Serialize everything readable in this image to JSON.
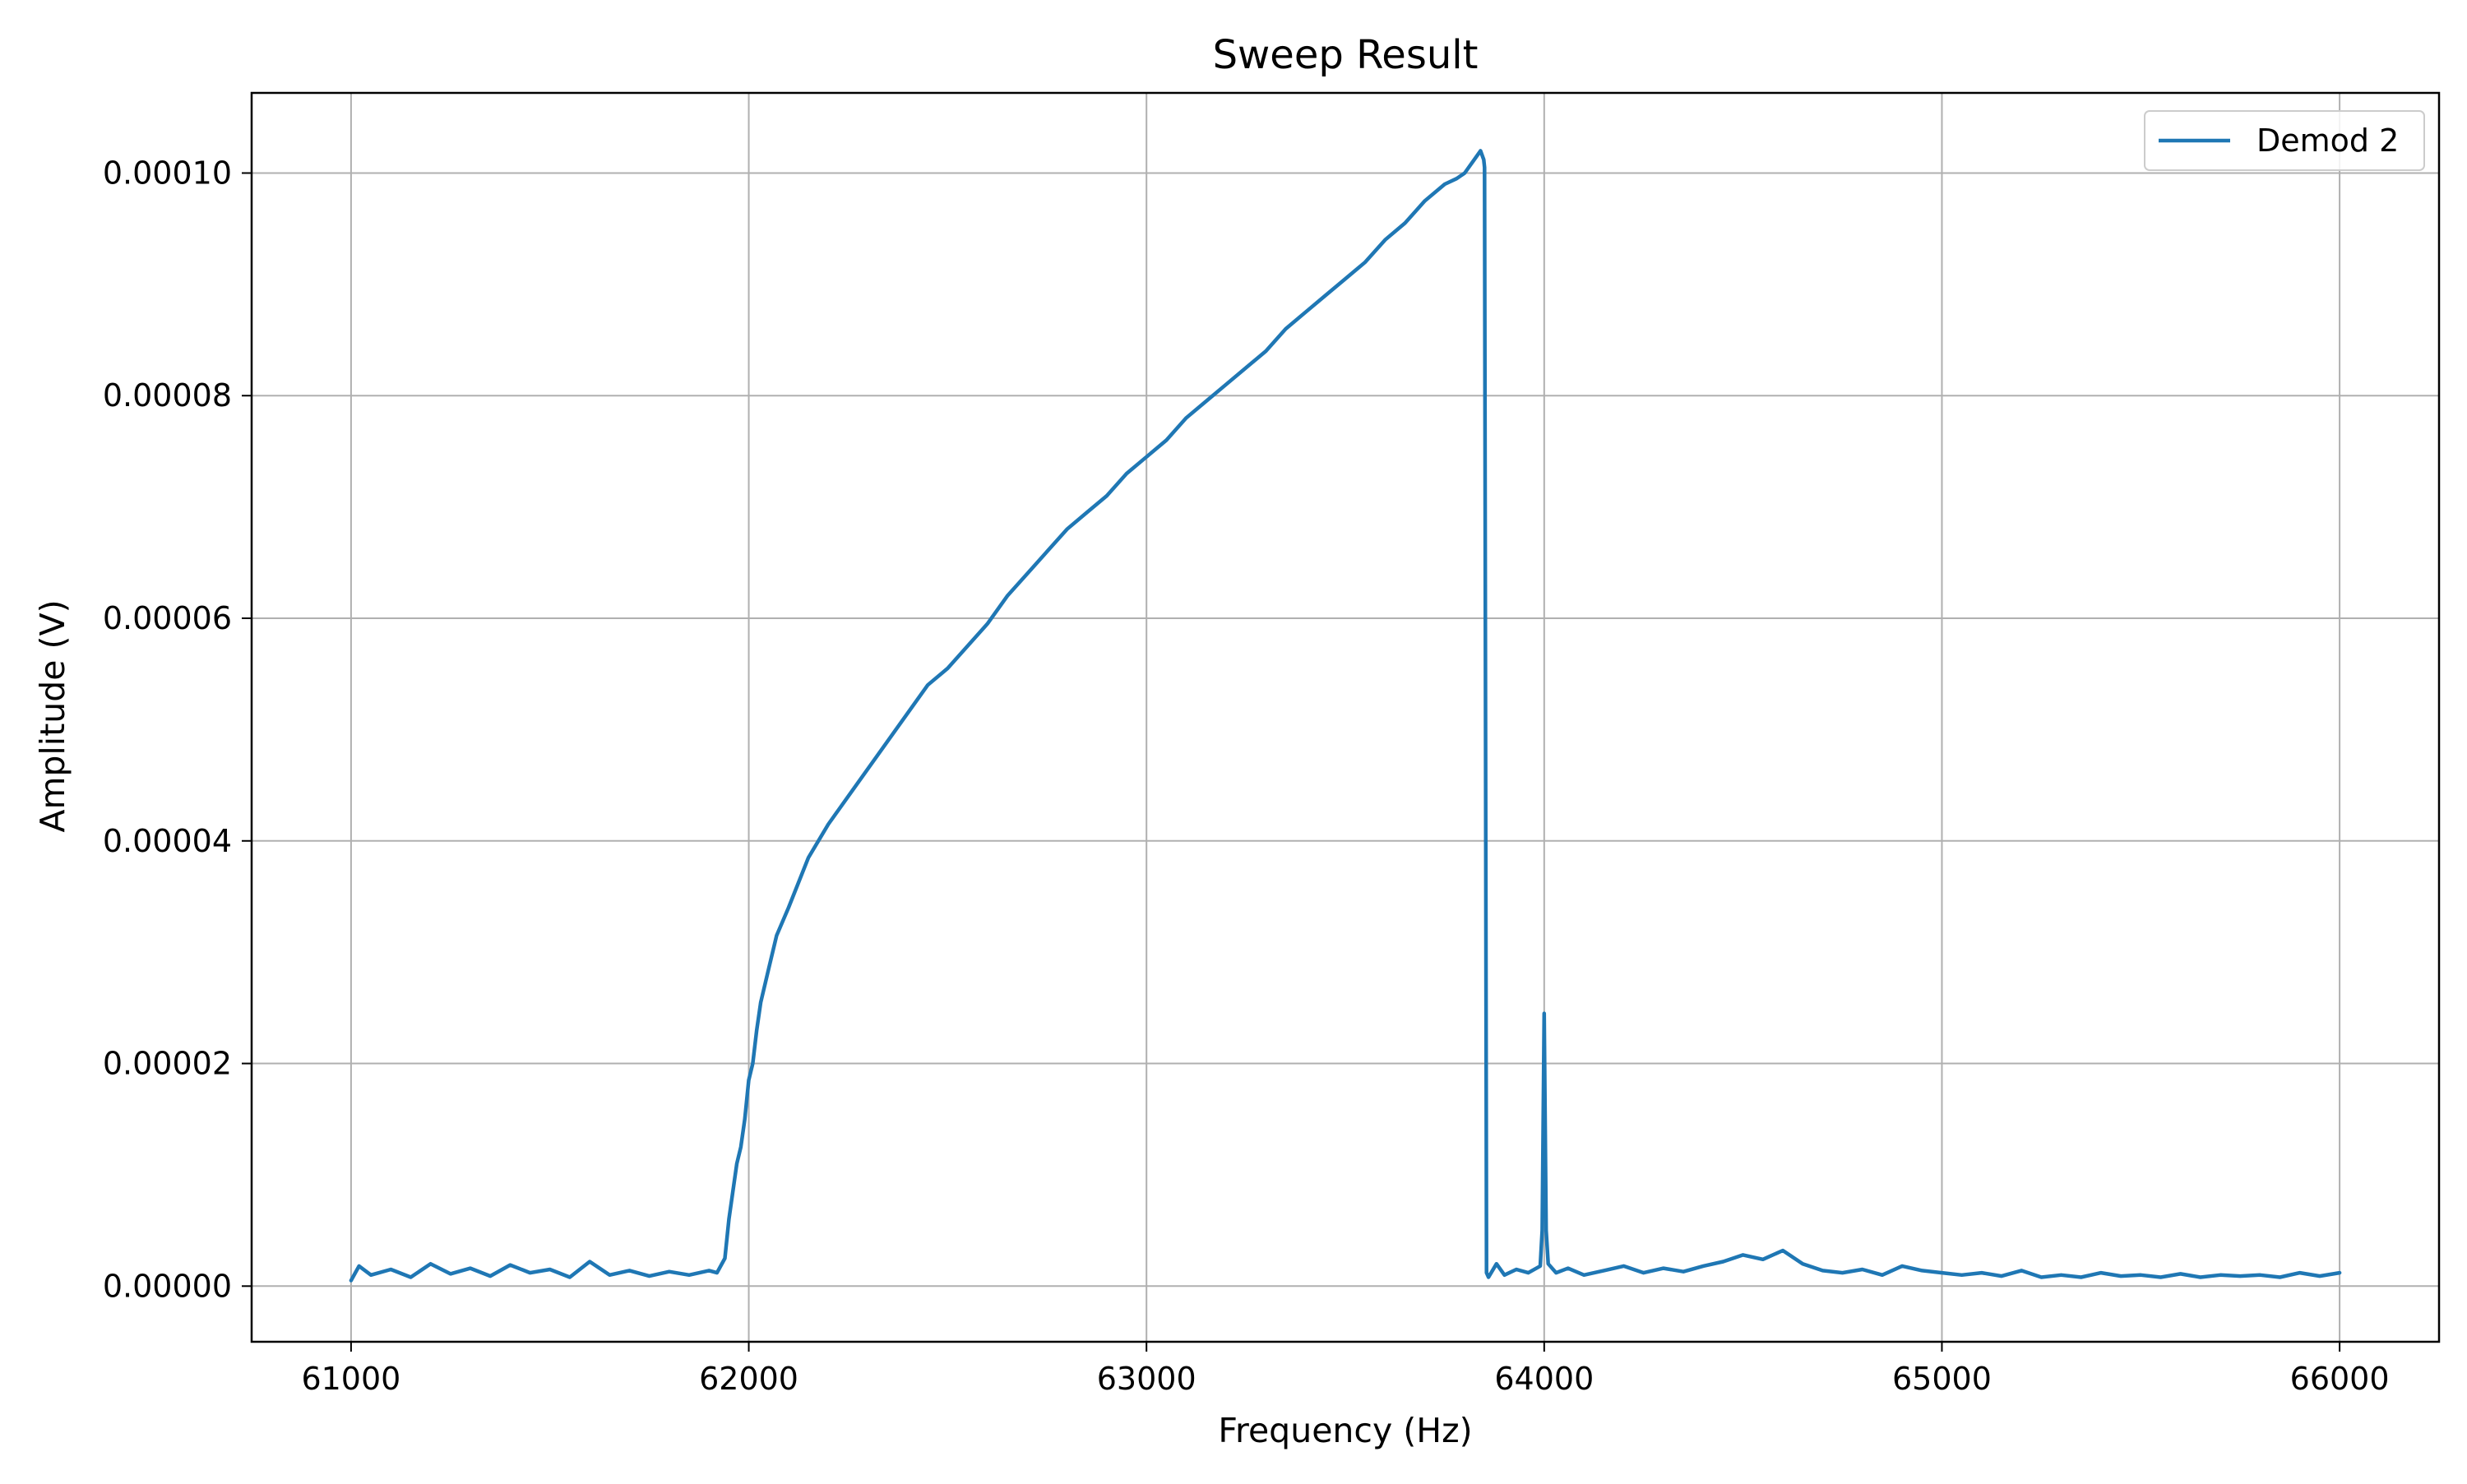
{
  "chart_data": {
    "type": "line",
    "title": "Sweep Result",
    "xlabel": "Frequency (Hz)",
    "ylabel": "Amplitude (V)",
    "xlim": [
      60750,
      66250
    ],
    "ylim": [
      -5e-06,
      0.0001072
    ],
    "xticks": [
      61000,
      62000,
      63000,
      64000,
      65000,
      66000
    ],
    "xtick_labels": [
      "61000",
      "62000",
      "63000",
      "64000",
      "65000",
      "66000"
    ],
    "yticks": [
      0,
      2e-05,
      4e-05,
      6e-05,
      8e-05,
      0.0001
    ],
    "ytick_labels": [
      "0.00000",
      "0.00002",
      "0.00004",
      "0.00006",
      "0.00008",
      "0.00010"
    ],
    "grid": true,
    "legend_position": "top-right",
    "colors": {
      "series": "#1f77b4",
      "grid": "#b0b0b0",
      "axes": "#000000"
    },
    "series": [
      {
        "name": "Demod 2",
        "x": [
          61000,
          61020,
          61050,
          61100,
          61150,
          61200,
          61250,
          61300,
          61350,
          61400,
          61450,
          61500,
          61550,
          61600,
          61650,
          61700,
          61750,
          61800,
          61850,
          61900,
          61920,
          61940,
          61950,
          61960,
          61970,
          61980,
          61990,
          62000,
          62010,
          62020,
          62030,
          62050,
          62070,
          62100,
          62150,
          62200,
          62250,
          62300,
          62350,
          62400,
          62450,
          62500,
          62550,
          62600,
          62650,
          62700,
          62750,
          62800,
          62850,
          62900,
          62950,
          63000,
          63050,
          63100,
          63150,
          63200,
          63250,
          63300,
          63350,
          63400,
          63450,
          63500,
          63550,
          63600,
          63650,
          63700,
          63750,
          63780,
          63800,
          63820,
          63840,
          63848,
          63850,
          63855,
          63860,
          63880,
          63900,
          63930,
          63960,
          63990,
          63995,
          64000,
          64005,
          64010,
          64030,
          64060,
          64100,
          64150,
          64200,
          64250,
          64300,
          64350,
          64400,
          64450,
          64500,
          64550,
          64600,
          64650,
          64700,
          64750,
          64800,
          64850,
          64900,
          64950,
          65000,
          65050,
          65100,
          65150,
          65200,
          65250,
          65300,
          65350,
          65400,
          65450,
          65500,
          65550,
          65600,
          65650,
          65700,
          65750,
          65800,
          65850,
          65900,
          65950,
          66000
        ],
        "y": [
          5e-07,
          1.8e-06,
          1e-06,
          1.5e-06,
          8e-07,
          2e-06,
          1.1e-06,
          1.6e-06,
          9e-07,
          1.9e-06,
          1.2e-06,
          1.5e-06,
          8e-07,
          2.2e-06,
          1e-06,
          1.4e-06,
          9e-07,
          1.3e-06,
          1e-06,
          1.4e-06,
          1.2e-06,
          2.5e-06,
          6e-06,
          8.5e-06,
          1.1e-05,
          1.25e-05,
          1.5e-05,
          1.85e-05,
          2e-05,
          2.3e-05,
          2.55e-05,
          2.85e-05,
          3.15e-05,
          3.4e-05,
          3.85e-05,
          4.15e-05,
          4.4e-05,
          4.65e-05,
          4.9e-05,
          5.15e-05,
          5.4e-05,
          5.55e-05,
          5.75e-05,
          5.95e-05,
          6.2e-05,
          6.4e-05,
          6.6e-05,
          6.8e-05,
          6.95e-05,
          7.1e-05,
          7.3e-05,
          7.45e-05,
          7.6e-05,
          7.8e-05,
          7.95e-05,
          8.1e-05,
          8.25e-05,
          8.4e-05,
          8.6e-05,
          8.75e-05,
          8.9e-05,
          9.05e-05,
          9.2e-05,
          9.4e-05,
          9.55e-05,
          9.75e-05,
          9.9e-05,
          9.95e-05,
          0.0001,
          0.000101,
          0.000102,
          0.0001012,
          0.0001005,
          1.2e-06,
          8e-07,
          2e-06,
          1e-06,
          1.5e-06,
          1.2e-06,
          1.8e-06,
          5e-06,
          2.45e-05,
          5e-06,
          2e-06,
          1.2e-06,
          1.6e-06,
          1e-06,
          1.4e-06,
          1.8e-06,
          1.2e-06,
          1.6e-06,
          1.3e-06,
          1.8e-06,
          2.2e-06,
          2.8e-06,
          2.4e-06,
          3.2e-06,
          2e-06,
          1.4e-06,
          1.2e-06,
          1.5e-06,
          1e-06,
          1.8e-06,
          1.4e-06,
          1.2e-06,
          1e-06,
          1.2e-06,
          9e-07,
          1.4e-06,
          8e-07,
          1e-06,
          8e-07,
          1.2e-06,
          9e-07,
          1e-06,
          8e-07,
          1.1e-06,
          8e-07,
          1e-06,
          9e-07,
          1e-06,
          8e-07,
          1.2e-06,
          9e-07,
          1.2e-06
        ]
      }
    ]
  }
}
